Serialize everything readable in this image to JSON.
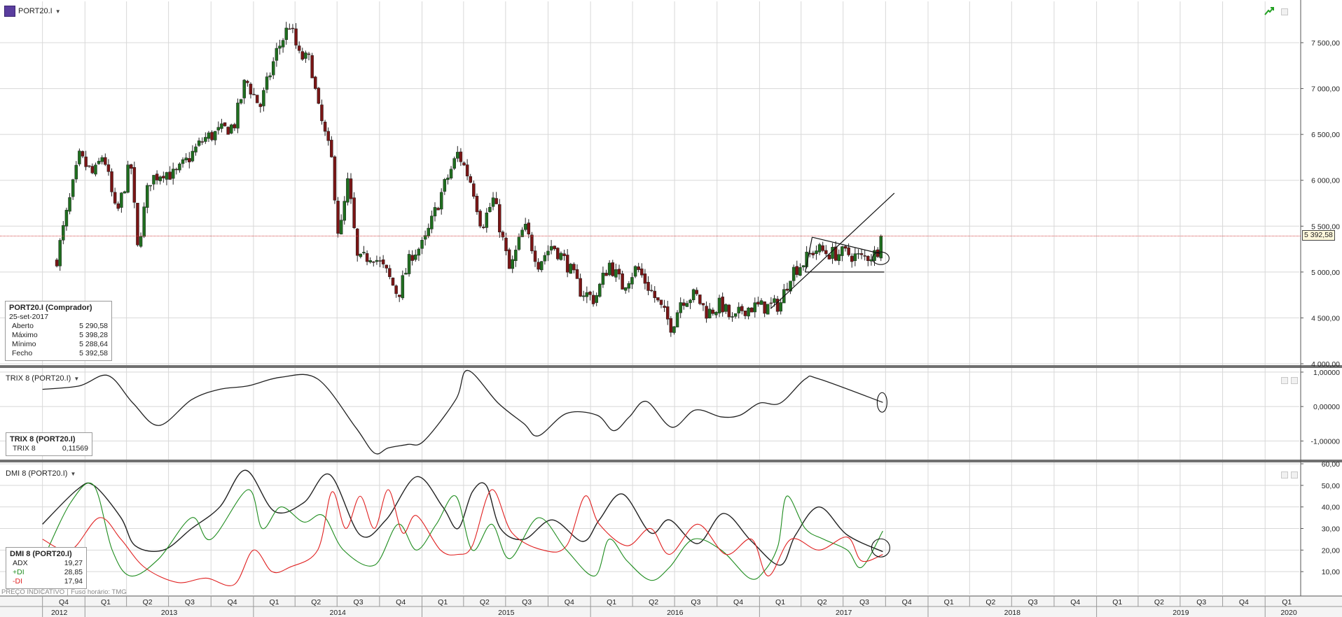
{
  "toolbar": {
    "symbol": "PORT20.I"
  },
  "colors": {
    "up": "#1f6e1f",
    "down": "#7a1515",
    "plus_di": "#1e8c1e",
    "minus_di": "#e02020",
    "adx": "#222222",
    "trix": "#222222",
    "grid": "#d8d8d8",
    "last_price_line": "#d04040"
  },
  "price_info": {
    "title": "PORT20.I (Comprador)",
    "date": "25-set-2017",
    "rows": [
      {
        "label": "Aberto",
        "value": "5 290,58"
      },
      {
        "label": "Máximo",
        "value": "5 398,28"
      },
      {
        "label": "Mínimo",
        "value": "5 288,64"
      },
      {
        "label": "Fecho",
        "value": "5 392,58"
      }
    ]
  },
  "last_price_tag": "5 392,58",
  "trix_pane": {
    "label": "TRIX 8 (PORT20.I)",
    "info_title": "TRIX 8 (PORT20.I)",
    "info_row_label": "TRIX 8",
    "info_row_value": "0,11569"
  },
  "dmi_pane": {
    "label": "DMI 8 (PORT20.I)",
    "info_title": "DMI 8 (PORT20.I)",
    "rows": [
      {
        "label": "ADX",
        "value": "19,27",
        "color": "#222222"
      },
      {
        "label": "+DI",
        "value": "28,85",
        "color": "#1e8c1e"
      },
      {
        "label": "-DI",
        "value": "17,94",
        "color": "#e02020"
      }
    ]
  },
  "footer": {
    "left": "PREÇO INDICATIVO",
    "right": "Fuso horário: TMG"
  },
  "chart_data": [
    {
      "type": "candlestick",
      "interval": "weekly",
      "y_ticks": [
        "4 000,00",
        "4 500,00",
        "5 000,00",
        "5 500,00",
        "6 000,00",
        "6 500,00",
        "7 000,00",
        "7 500,00"
      ],
      "ylim": [
        4000,
        7950
      ],
      "last_close": 5392.58,
      "anchors": [
        [
          "2012-11-01",
          5150
        ],
        [
          "2012-12-20",
          6250
        ],
        [
          "2013-01-20",
          6050
        ],
        [
          "2013-02-10",
          6300
        ],
        [
          "2013-03-10",
          5600
        ],
        [
          "2013-04-10",
          6200
        ],
        [
          "2013-04-25",
          5250
        ],
        [
          "2013-05-20",
          6000
        ],
        [
          "2013-06-20",
          6100
        ],
        [
          "2013-07-15",
          6050
        ],
        [
          "2013-09-15",
          6450
        ],
        [
          "2013-11-20",
          6600
        ],
        [
          "2013-12-15",
          7100
        ],
        [
          "2014-01-15",
          6800
        ],
        [
          "2014-02-20",
          7400
        ],
        [
          "2014-03-20",
          7700
        ],
        [
          "2014-04-10",
          7350
        ],
        [
          "2014-05-05",
          7300
        ],
        [
          "2014-05-20",
          6800
        ],
        [
          "2014-06-20",
          6200
        ],
        [
          "2014-07-05",
          5350
        ],
        [
          "2014-07-25",
          6000
        ],
        [
          "2014-08-15",
          5100
        ],
        [
          "2014-09-15",
          5200
        ],
        [
          "2014-10-15",
          5000
        ],
        [
          "2014-11-10",
          4750
        ],
        [
          "2014-12-10",
          5200
        ],
        [
          "2015-01-05",
          5300
        ],
        [
          "2015-02-15",
          5900
        ],
        [
          "2015-03-20",
          6300
        ],
        [
          "2015-04-20",
          5950
        ],
        [
          "2015-05-10",
          5500
        ],
        [
          "2015-06-05",
          5800
        ],
        [
          "2015-07-10",
          5000
        ],
        [
          "2015-08-10",
          5500
        ],
        [
          "2015-09-10",
          5100
        ],
        [
          "2015-10-10",
          5300
        ],
        [
          "2015-11-10",
          5100
        ],
        [
          "2015-12-10",
          4800
        ],
        [
          "2016-01-10",
          4700
        ],
        [
          "2016-02-10",
          5100
        ],
        [
          "2016-03-10",
          4850
        ],
        [
          "2016-04-10",
          5050
        ],
        [
          "2016-05-10",
          4800
        ],
        [
          "2016-06-25",
          4400
        ],
        [
          "2016-07-15",
          4700
        ],
        [
          "2016-08-15",
          4750
        ],
        [
          "2016-09-10",
          4550
        ],
        [
          "2016-10-10",
          4650
        ],
        [
          "2016-11-05",
          4450
        ],
        [
          "2016-11-25",
          4600
        ],
        [
          "2016-12-20",
          4620
        ],
        [
          "2017-01-20",
          4620
        ],
        [
          "2017-02-15",
          4650
        ],
        [
          "2017-03-10",
          5000
        ],
        [
          "2017-04-05",
          5100
        ],
        [
          "2017-05-01",
          5250
        ],
        [
          "2017-06-05",
          5200
        ],
        [
          "2017-07-10",
          5200
        ],
        [
          "2017-08-10",
          5150
        ],
        [
          "2017-09-10",
          5200
        ],
        [
          "2017-09-25",
          5392.58
        ]
      ]
    },
    {
      "type": "line",
      "name": "TRIX 8",
      "y_ticks": [
        "-1,00000",
        "0,00000",
        "1,00000"
      ],
      "ylim": [
        -1.5,
        1.1
      ],
      "x": [
        "2012-10-01",
        "2012-12-20",
        "2013-02-20",
        "2013-04-15",
        "2013-06-10",
        "2013-08-20",
        "2013-10-20",
        "2013-12-20",
        "2014-03-01",
        "2014-05-20",
        "2014-08-10",
        "2014-09-20",
        "2014-10-20",
        "2014-12-01",
        "2015-01-05",
        "2015-03-15",
        "2015-04-10",
        "2015-06-15",
        "2015-08-10",
        "2015-09-10",
        "2015-11-10",
        "2016-01-15",
        "2016-02-20",
        "2016-03-25",
        "2016-05-01",
        "2016-06-25",
        "2016-08-15",
        "2016-10-10",
        "2016-11-20",
        "2017-01-01",
        "2017-02-15",
        "2017-04-10",
        "2017-05-10",
        "2017-09-25"
      ],
      "y": [
        0.5,
        0.6,
        0.9,
        0.1,
        -0.55,
        0.2,
        0.5,
        0.6,
        0.85,
        0.8,
        -0.6,
        -1.35,
        -1.2,
        -1.1,
        -1.0,
        0.2,
        1.05,
        0.1,
        -0.5,
        -0.85,
        -0.2,
        -0.25,
        -0.7,
        -0.3,
        0.15,
        -0.6,
        -0.1,
        -0.3,
        -0.25,
        0.1,
        0.1,
        0.8,
        0.8,
        0.12
      ]
    },
    {
      "type": "line",
      "name": "DMI 8",
      "y_ticks": [
        "10,00",
        "20,00",
        "30,00",
        "40,00",
        "50,00",
        "60,00"
      ],
      "ylim": [
        0,
        60
      ],
      "series": [
        {
          "name": "ADX",
          "x": [
            "2012-10-01",
            "2012-12-15",
            "2013-01-20",
            "2013-03-20",
            "2013-04-20",
            "2013-06-20",
            "2013-08-20",
            "2013-10-20",
            "2013-12-15",
            "2014-02-15",
            "2014-04-20",
            "2014-06-15",
            "2014-08-20",
            "2014-10-15",
            "2014-12-20",
            "2015-02-15",
            "2015-03-20",
            "2015-04-20",
            "2015-05-20",
            "2015-06-20",
            "2015-08-10",
            "2015-10-10",
            "2015-12-15",
            "2016-01-20",
            "2016-03-10",
            "2016-05-10",
            "2016-06-20",
            "2016-08-20",
            "2016-10-15",
            "2016-12-15",
            "2017-02-15",
            "2017-03-20",
            "2017-05-10",
            "2017-07-10",
            "2017-09-25"
          ],
          "y": [
            32,
            48,
            50,
            35,
            22,
            20,
            30,
            40,
            57,
            38,
            42,
            55,
            27,
            34,
            54,
            40,
            30,
            47,
            50,
            30,
            25,
            34,
            24,
            34,
            46,
            28,
            34,
            23,
            37,
            24,
            13,
            27,
            40,
            27,
            19.27
          ]
        },
        {
          "name": "+DI",
          "x": [
            "2012-10-01",
            "2012-12-01",
            "2013-01-20",
            "2013-03-01",
            "2013-04-10",
            "2013-06-10",
            "2013-08-20",
            "2013-10-01",
            "2013-12-20",
            "2014-01-20",
            "2014-03-01",
            "2014-04-20",
            "2014-06-01",
            "2014-07-15",
            "2014-09-20",
            "2014-11-10",
            "2014-12-20",
            "2015-02-01",
            "2015-03-15",
            "2015-04-20",
            "2015-06-01",
            "2015-07-10",
            "2015-09-10",
            "2015-11-10",
            "2016-01-10",
            "2016-02-10",
            "2016-03-20",
            "2016-05-10",
            "2016-06-20",
            "2016-08-10",
            "2016-10-10",
            "2016-12-10",
            "2017-01-10",
            "2017-02-10",
            "2017-03-01",
            "2017-04-10",
            "2017-05-20",
            "2017-07-10",
            "2017-08-10",
            "2017-09-25"
          ],
          "y": [
            15,
            42,
            50,
            20,
            8,
            16,
            35,
            25,
            48,
            30,
            40,
            33,
            36,
            20,
            13,
            32,
            20,
            32,
            45,
            20,
            32,
            16,
            35,
            20,
            8,
            25,
            15,
            6,
            12,
            25,
            20,
            7,
            10,
            22,
            45,
            30,
            25,
            20,
            12,
            28.85
          ]
        },
        {
          "name": "-DI",
          "x": [
            "2012-10-01",
            "2012-12-01",
            "2013-02-01",
            "2013-03-20",
            "2013-05-10",
            "2013-07-20",
            "2013-09-20",
            "2013-11-20",
            "2014-01-01",
            "2014-02-10",
            "2014-03-20",
            "2014-05-20",
            "2014-06-20",
            "2014-07-20",
            "2014-08-20",
            "2014-09-20",
            "2014-10-20",
            "2014-11-20",
            "2014-12-20",
            "2015-02-10",
            "2015-03-20",
            "2015-04-20",
            "2015-06-01",
            "2015-07-15",
            "2015-09-20",
            "2015-11-10",
            "2015-12-20",
            "2016-01-20",
            "2016-03-20",
            "2016-05-10",
            "2016-06-20",
            "2016-08-20",
            "2016-10-20",
            "2016-12-15",
            "2017-01-20",
            "2017-03-10",
            "2017-05-10",
            "2017-07-10",
            "2017-08-10",
            "2017-09-25"
          ],
          "y": [
            25,
            20,
            35,
            25,
            12,
            5,
            7,
            4,
            20,
            10,
            12,
            20,
            47,
            30,
            45,
            30,
            48,
            28,
            36,
            20,
            18,
            22,
            48,
            28,
            20,
            22,
            45,
            32,
            22,
            30,
            18,
            32,
            18,
            25,
            8,
            25,
            20,
            26,
            15,
            17.94
          ]
        }
      ]
    }
  ],
  "x_axis": {
    "quarters": [
      {
        "label": "Q4",
        "date": "2012-10-01"
      },
      {
        "label": "Q1",
        "date": "2013-01-01"
      },
      {
        "label": "Q2",
        "date": "2013-04-01"
      },
      {
        "label": "Q3",
        "date": "2013-07-01"
      },
      {
        "label": "Q4",
        "date": "2013-10-01"
      },
      {
        "label": "Q1",
        "date": "2014-01-01"
      },
      {
        "label": "Q2",
        "date": "2014-04-01"
      },
      {
        "label": "Q3",
        "date": "2014-07-01"
      },
      {
        "label": "Q4",
        "date": "2014-10-01"
      },
      {
        "label": "Q1",
        "date": "2015-01-01"
      },
      {
        "label": "Q2",
        "date": "2015-04-01"
      },
      {
        "label": "Q3",
        "date": "2015-07-01"
      },
      {
        "label": "Q4",
        "date": "2015-10-01"
      },
      {
        "label": "Q1",
        "date": "2016-01-01"
      },
      {
        "label": "Q2",
        "date": "2016-04-01"
      },
      {
        "label": "Q3",
        "date": "2016-07-01"
      },
      {
        "label": "Q4",
        "date": "2016-10-01"
      },
      {
        "label": "Q1",
        "date": "2017-01-01"
      },
      {
        "label": "Q2",
        "date": "2017-04-01"
      },
      {
        "label": "Q3",
        "date": "2017-07-01"
      },
      {
        "label": "Q4",
        "date": "2017-10-01"
      },
      {
        "label": "Q1",
        "date": "2018-01-01"
      },
      {
        "label": "Q2",
        "date": "2018-04-01"
      },
      {
        "label": "Q3",
        "date": "2018-07-01"
      },
      {
        "label": "Q4",
        "date": "2018-10-01"
      },
      {
        "label": "Q1",
        "date": "2019-01-01"
      },
      {
        "label": "Q2",
        "date": "2019-04-01"
      },
      {
        "label": "Q3",
        "date": "2019-07-01"
      },
      {
        "label": "Q4",
        "date": "2019-10-01"
      },
      {
        "label": "Q1",
        "date": "2020-01-01"
      }
    ],
    "years": [
      {
        "label": "2012",
        "date": "2012-10-01"
      },
      {
        "label": "2013",
        "date": "2013-01-01"
      },
      {
        "label": "2014",
        "date": "2014-01-01"
      },
      {
        "label": "2015",
        "date": "2015-01-01"
      },
      {
        "label": "2016",
        "date": "2016-01-01"
      },
      {
        "label": "2017",
        "date": "2017-01-01"
      },
      {
        "label": "2018",
        "date": "2018-01-01"
      },
      {
        "label": "2019",
        "date": "2019-01-01"
      },
      {
        "label": "2020",
        "date": "2020-01-01"
      }
    ]
  },
  "annotations": [
    {
      "kind": "trendline",
      "from": [
        "2017-01-25",
        4600
      ],
      "to": [
        "2017-10-20",
        5860
      ]
    },
    {
      "kind": "triangle-upper",
      "from": [
        "2017-04-25",
        5380
      ],
      "to": [
        "2017-09-20",
        5200
      ]
    },
    {
      "kind": "triangle-lower",
      "from": [
        "2017-04-10",
        5000
      ],
      "to": [
        "2017-09-28",
        5000
      ]
    },
    {
      "kind": "triangle-left",
      "from": [
        "2017-04-25",
        5380
      ],
      "to": [
        "2017-04-10",
        5000
      ]
    }
  ]
}
